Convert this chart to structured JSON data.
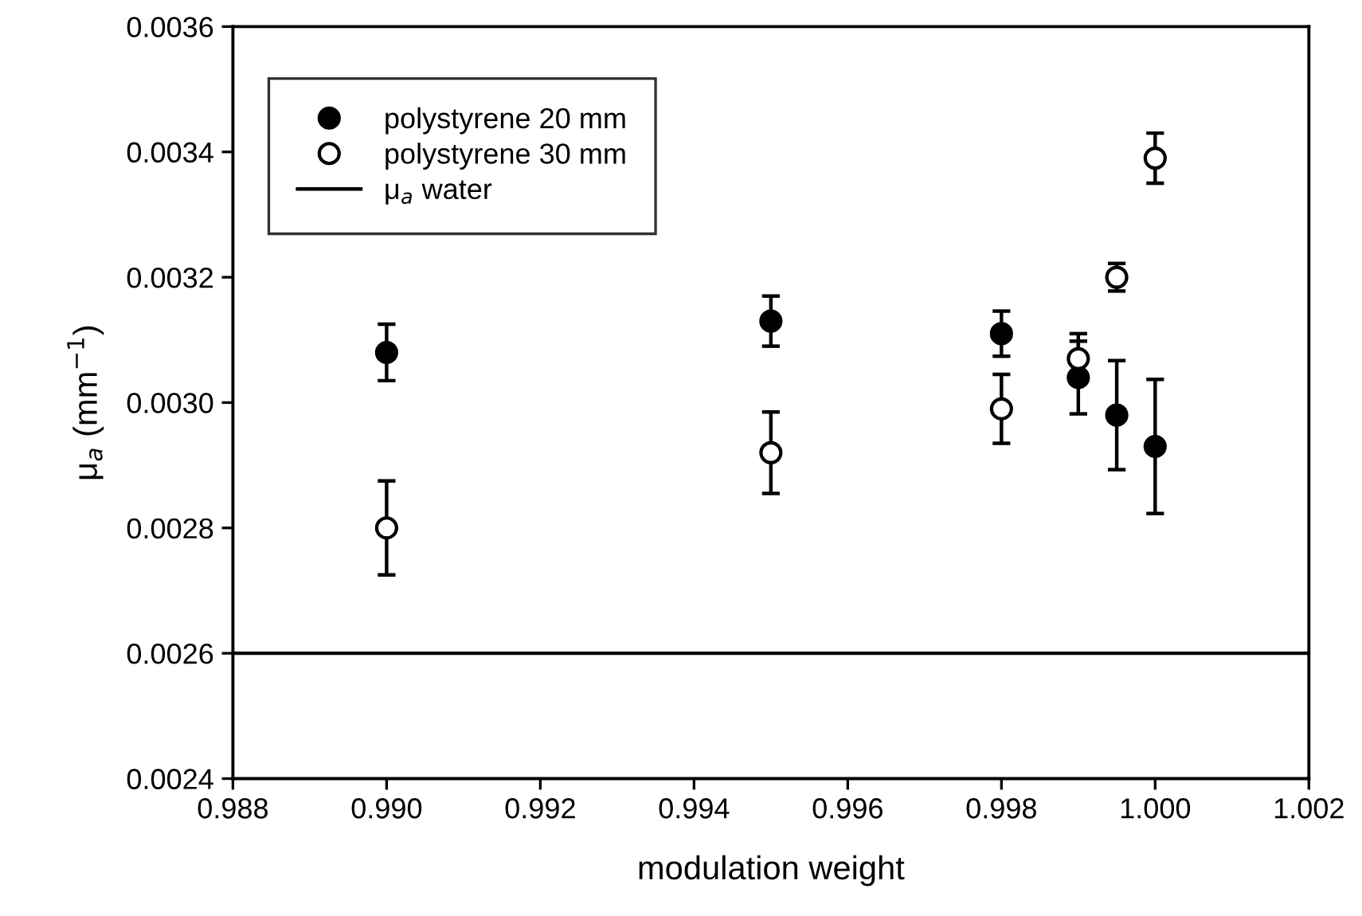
{
  "chart_data": {
    "type": "scatter",
    "xlabel": "modulation weight",
    "ylabel": "μ$_{a}$ (mm$^{−1}$)",
    "xlim": [
      0.988,
      1.002
    ],
    "xticks": [
      {
        "value": 0.988,
        "label": "0.988"
      },
      {
        "value": 0.99,
        "label": "0.990"
      },
      {
        "value": 0.992,
        "label": "0.992"
      },
      {
        "value": 0.994,
        "label": "0.994"
      },
      {
        "value": 0.996,
        "label": "0.996"
      },
      {
        "value": 0.998,
        "label": "0.998"
      },
      {
        "value": 1.0,
        "label": "1.000"
      },
      {
        "value": 1.002,
        "label": "1.002"
      }
    ],
    "ylim": [
      0.0024,
      0.0036
    ],
    "yticks": [
      {
        "value": 0.0024,
        "label": "0.0024"
      },
      {
        "value": 0.0026,
        "label": "0.0026"
      },
      {
        "value": 0.0028,
        "label": "0.0028"
      },
      {
        "value": 0.003,
        "label": "0.0030"
      },
      {
        "value": 0.0032,
        "label": "0.0032"
      },
      {
        "value": 0.0034,
        "label": "0.0034"
      },
      {
        "value": 0.0036,
        "label": "0.0036"
      }
    ],
    "x": [
      0.99,
      0.995,
      0.998,
      0.999,
      0.9995,
      1.0
    ],
    "series": [
      {
        "name": "polystyrene 20 mm",
        "color": "#000000",
        "values": [
          0.00308,
          0.00313,
          0.00311,
          0.00304,
          0.00298,
          0.00293
        ],
        "errors": [
          4.5e-05,
          4e-05,
          3.6e-05,
          5.8e-05,
          8.7e-05,
          0.000107
        ]
      },
      {
        "name": "polystyrene 30 mm",
        "color": "#ffffff",
        "values": [
          0.0028,
          0.00292,
          0.00299,
          0.00307,
          0.0032,
          0.00339
        ],
        "errors": [
          7.5e-05,
          6.5e-05,
          5.5e-05,
          4e-05,
          2.2e-05,
          4e-05
        ]
      }
    ],
    "ref_lines": [
      {
        "axis": "y",
        "value": 0.0026,
        "label": "μ$_{a}$ water",
        "color": "#000000"
      }
    ],
    "marker": "circle",
    "grid": false,
    "legend": "top left"
  }
}
